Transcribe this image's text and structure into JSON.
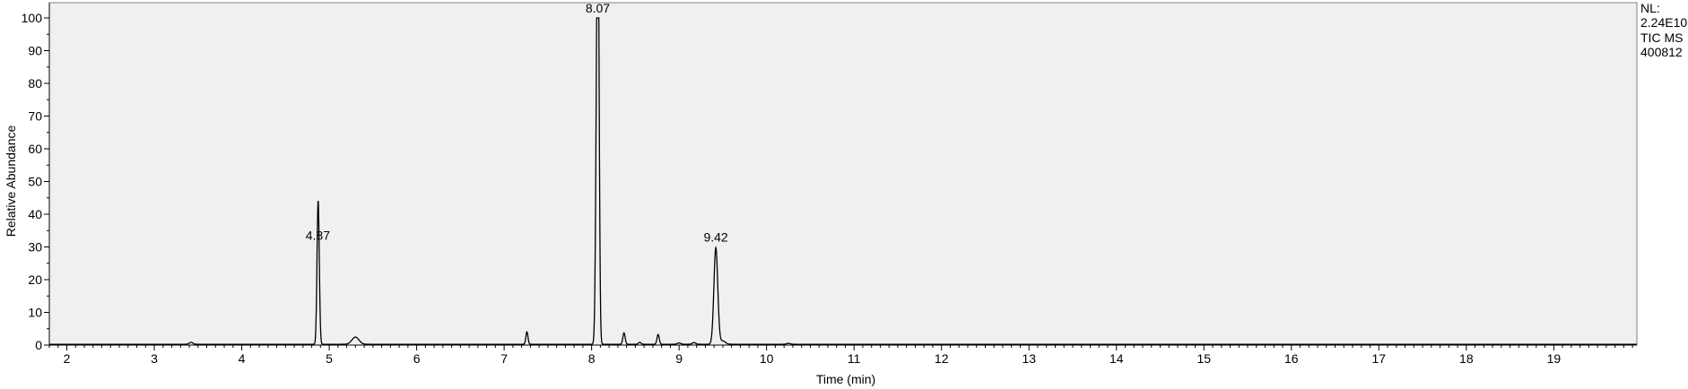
{
  "chart_data": {
    "type": "line",
    "title": "",
    "xlabel": "Time (min)",
    "ylabel": "Relative Abundance",
    "xlim": [
      1.8,
      19.95
    ],
    "ylim": [
      0,
      100
    ],
    "grid": false,
    "background": "#f0f0f0",
    "line_color": "#000000",
    "x_ticks": [
      "2",
      "3",
      "4",
      "5",
      "6",
      "7",
      "8",
      "9",
      "10",
      "11",
      "12",
      "13",
      "14",
      "15",
      "16",
      "17",
      "18",
      "19"
    ],
    "y_ticks": [
      "0",
      "10",
      "20",
      "30",
      "40",
      "50",
      "60",
      "70",
      "80",
      "90",
      "100"
    ],
    "peaks": [
      {
        "x": 3.42,
        "y": 0.6,
        "w": 0.02
      },
      {
        "x": 4.87,
        "y": 30.5,
        "w": 0.012
      },
      {
        "x": 4.88,
        "y": 17.0,
        "w": 0.012
      },
      {
        "x": 5.3,
        "y": 2.2,
        "w": 0.04
      },
      {
        "x": 7.26,
        "y": 3.8,
        "w": 0.012
      },
      {
        "x": 8.06,
        "y": 65.0,
        "w": 0.014
      },
      {
        "x": 8.075,
        "y": 98.0,
        "w": 0.013
      },
      {
        "x": 8.37,
        "y": 3.5,
        "w": 0.013
      },
      {
        "x": 8.55,
        "y": 0.6,
        "w": 0.015
      },
      {
        "x": 8.76,
        "y": 3.0,
        "w": 0.013
      },
      {
        "x": 9.0,
        "y": 0.4,
        "w": 0.02
      },
      {
        "x": 9.17,
        "y": 0.5,
        "w": 0.02
      },
      {
        "x": 9.42,
        "y": 29.5,
        "w": 0.022
      },
      {
        "x": 9.5,
        "y": 1.0,
        "w": 0.03
      },
      {
        "x": 10.25,
        "y": 0.3,
        "w": 0.02
      }
    ],
    "peak_labels": [
      {
        "x": 4.87,
        "y": 30.5,
        "text": "4.87"
      },
      {
        "x": 8.07,
        "y": 100,
        "text": "8.07"
      },
      {
        "x": 9.42,
        "y": 30,
        "text": "9.42"
      }
    ]
  },
  "info": {
    "line1": "NL:",
    "line2": "2.24E10",
    "line3": "TIC  MS",
    "line4": "400812"
  }
}
